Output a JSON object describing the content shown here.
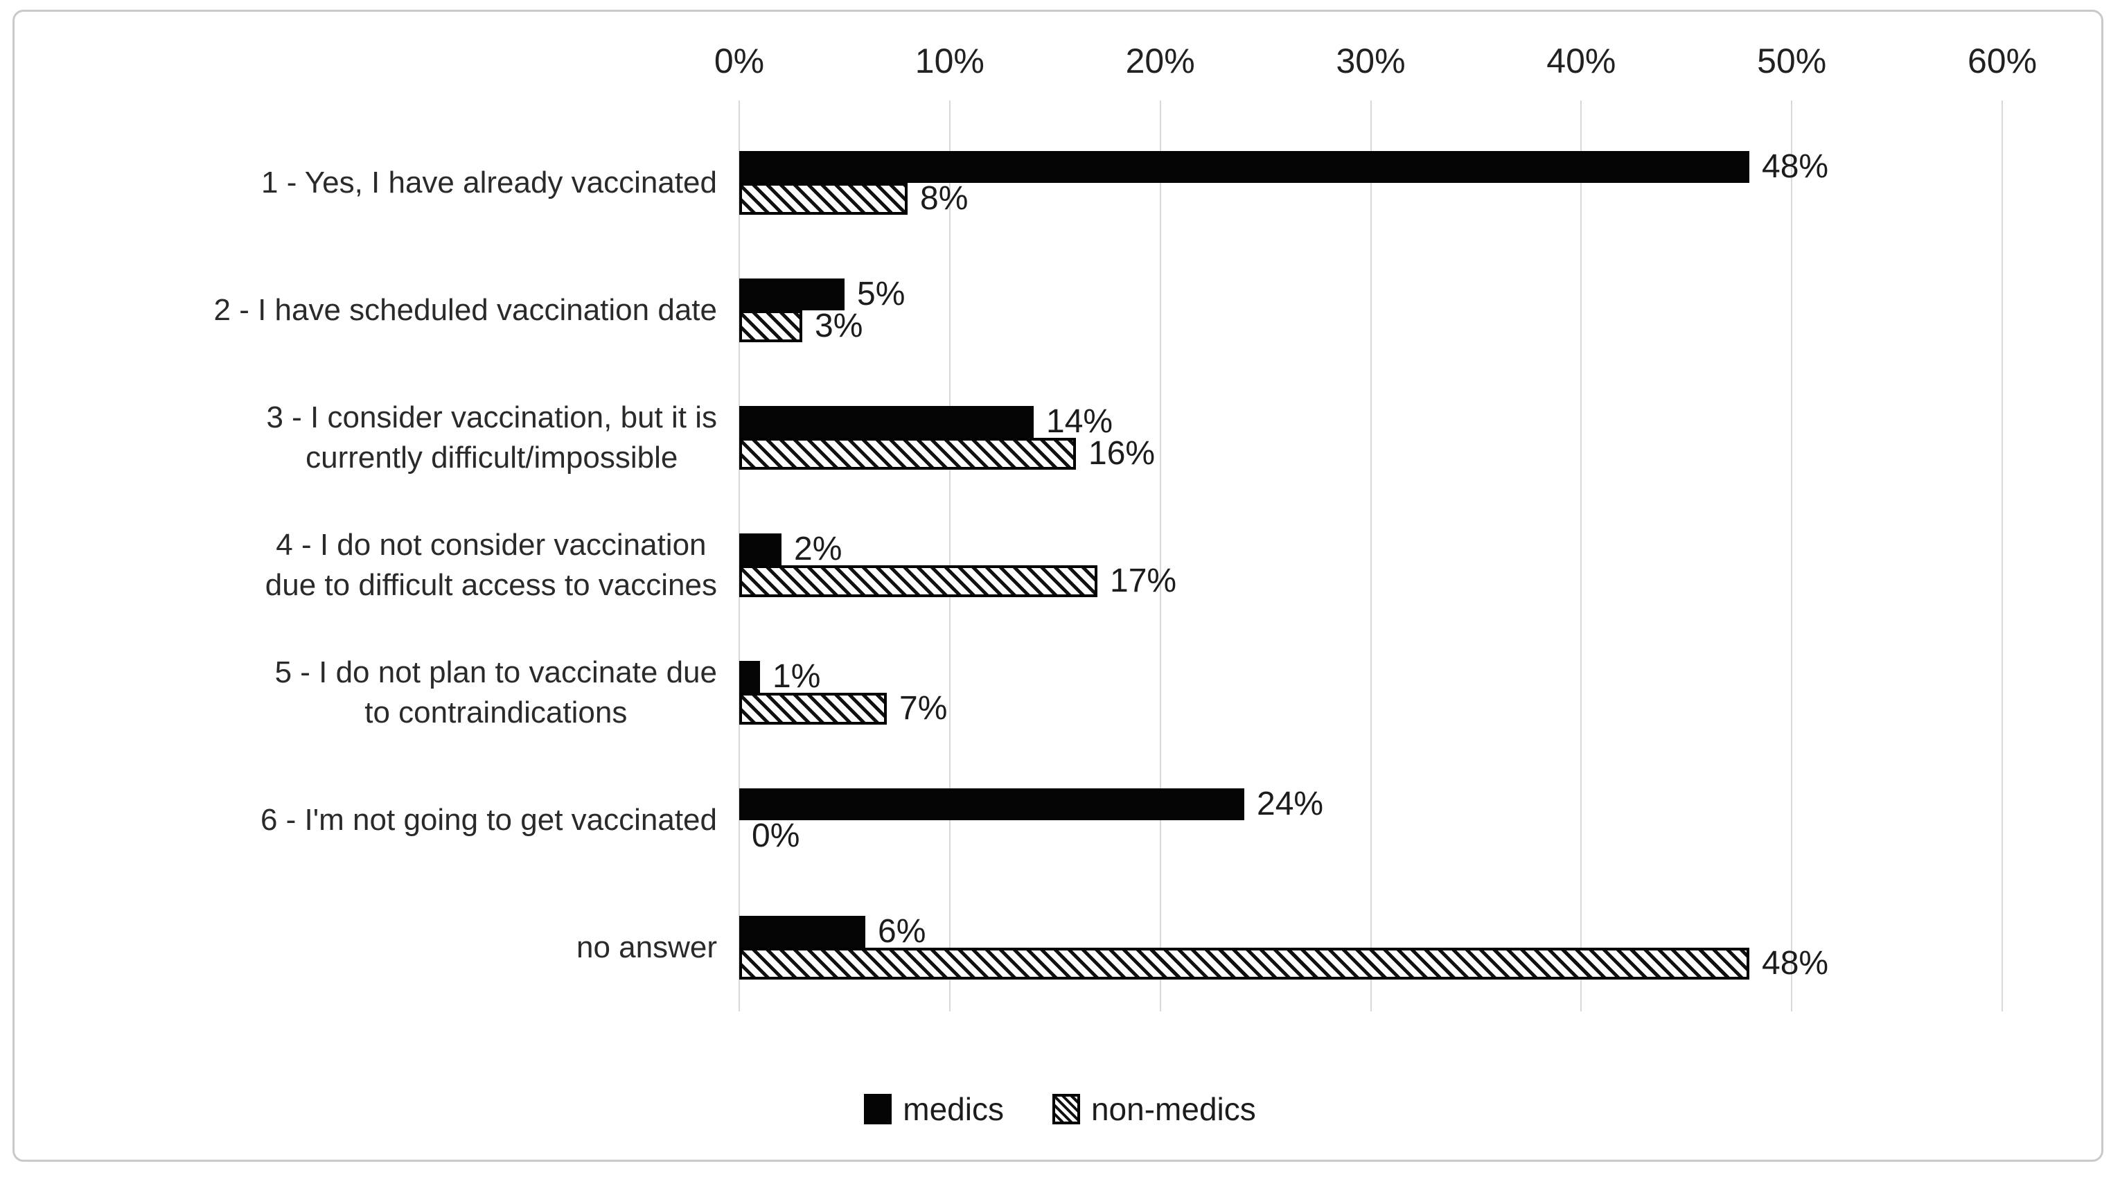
{
  "chart_data": {
    "type": "bar",
    "orientation": "horizontal-grouped",
    "title": "",
    "xlabel": "",
    "ylabel": "",
    "categories": [
      {
        "lines": [
          "1 - Yes, I have already vaccinated"
        ]
      },
      {
        "lines": [
          "2 - I have scheduled vaccination date"
        ]
      },
      {
        "lines": [
          "3 - I consider vaccination, but it is",
          "currently difficult/impossible"
        ]
      },
      {
        "lines": [
          "4 - I do not consider vaccination",
          "due to difficult access to vaccines"
        ]
      },
      {
        "lines": [
          "5 - I do not plan to vaccinate due",
          "to contraindications"
        ]
      },
      {
        "lines": [
          "6 - I'm not going to get vaccinated"
        ]
      },
      {
        "lines": [
          "no answer"
        ]
      }
    ],
    "series": [
      {
        "name": "medics",
        "pattern": "solid",
        "color": "#000000",
        "values": [
          48,
          5,
          14,
          2,
          1,
          24,
          6
        ]
      },
      {
        "name": "non-medics",
        "pattern": "diagonal-hatch",
        "hatch_foreground": "#000000",
        "hatch_background": "#ffffff",
        "values": [
          8,
          3,
          16,
          17,
          7,
          0,
          48
        ]
      }
    ],
    "data_labels": {
      "format": "{value}%",
      "medics": [
        "48%",
        "5%",
        "14%",
        "2%",
        "1%",
        "24%",
        "6%"
      ],
      "non_medics": [
        "8%",
        "3%",
        "16%",
        "17%",
        "7%",
        "0%",
        "48%"
      ]
    },
    "x_axis": {
      "position": "top",
      "min": 0,
      "max": 60,
      "tick_step": 10,
      "tick_labels": [
        "0%",
        "10%",
        "20%",
        "30%",
        "40%",
        "50%",
        "60%"
      ]
    },
    "grid": {
      "vertical": true,
      "color": "#d9d9d9"
    },
    "legend": {
      "position": "bottom",
      "items": [
        "medics",
        "non-medics"
      ]
    },
    "colors": {
      "background": "#ffffff",
      "frame_border": "#c9c9c9",
      "gridline": "#d9d9d9",
      "bar_fill": "#000000",
      "text": "#212121"
    }
  }
}
